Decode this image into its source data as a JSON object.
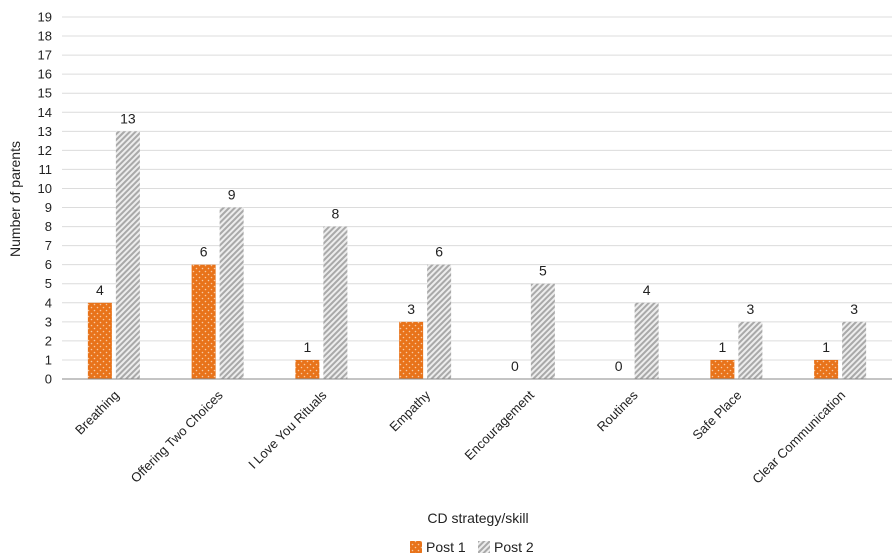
{
  "chart_data": {
    "type": "bar",
    "title": "",
    "xlabel": "CD strategy/skill",
    "ylabel": "Number of parents",
    "ylim": [
      0,
      19
    ],
    "yticks": [
      0,
      1,
      2,
      3,
      4,
      5,
      6,
      7,
      8,
      9,
      10,
      11,
      12,
      13,
      14,
      15,
      16,
      17,
      18,
      19
    ],
    "grid": true,
    "legend_position": "bottom-center",
    "categories": [
      "Breathing",
      "Offering Two Choices",
      "I Love You Rituals",
      "Empathy",
      "Encouragement",
      "Routines",
      "Safe Place",
      "Clear Communication"
    ],
    "series": [
      {
        "name": "Post 1",
        "values": [
          4,
          6,
          1,
          3,
          0,
          0,
          1,
          1
        ],
        "color": "#e8731a",
        "pattern": "dots"
      },
      {
        "name": "Post 2",
        "values": [
          13,
          9,
          8,
          6,
          5,
          4,
          3,
          3
        ],
        "color": "#b8b8b8",
        "pattern": "diagonal-stripes"
      }
    ]
  }
}
